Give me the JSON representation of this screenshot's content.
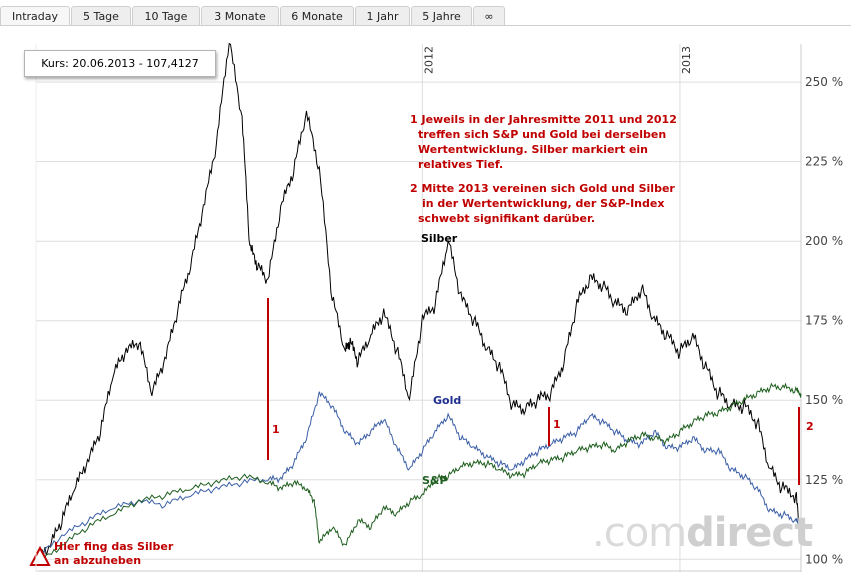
{
  "tabs": [
    {
      "label": "Intraday",
      "w": 70,
      "active": true
    },
    {
      "label": "5 Tage",
      "w": 60
    },
    {
      "label": "10 Tage",
      "w": 68
    },
    {
      "label": "3 Monate",
      "w": 78
    },
    {
      "label": "6 Monate",
      "w": 74
    },
    {
      "label": "1 Jahr",
      "w": 55
    },
    {
      "label": "5 Jahre",
      "w": 61
    },
    {
      "label": "∞",
      "w": 32
    }
  ],
  "tooltip": "Kurs: 20.06.2013 - 107,4127",
  "annotations": {
    "note1": [
      "1 Jeweils in der Jahresmitte 2011 und 2012",
      "treffen sich S&P und Gold bei derselben",
      "Wertentwicklung. Silber markiert ein",
      "relatives Tief."
    ],
    "note2": [
      "2 Mitte 2013 vereinen sich Gold und Silber",
      "in der Wertentwicklung, der S&P-Index",
      "schwebt signifikant darüber."
    ],
    "start_note": [
      "Hier fing das Silber",
      "an abzuheben"
    ],
    "marker1a": "1",
    "marker1b": "1",
    "marker2": "2"
  },
  "series_labels": {
    "silber": "Silber",
    "gold": "Gold",
    "sp": "S&P"
  },
  "watermark": {
    "dot": ".com",
    "rest": "direct"
  },
  "colors": {
    "silber": "#000000",
    "gold": "#3b5fa6",
    "sp": "#1e5e1e",
    "annotation": "#c00000",
    "grid": "#dddddd"
  },
  "chart_data": {
    "type": "line",
    "x_axis_labels": [
      "2012",
      "2013"
    ],
    "y_ticks": [
      "100 %",
      "125 %",
      "150 %",
      "175 %",
      "200 %",
      "225 %",
      "250 %"
    ],
    "ylim": [
      96,
      262
    ],
    "xlim": [
      2010.5,
      2013.47
    ],
    "series": [
      {
        "name": "Silber",
        "x": [
          2010.5,
          2010.55,
          2010.6,
          2010.65,
          2010.7,
          2010.75,
          2010.8,
          2010.85,
          2010.9,
          2010.95,
          2011.0,
          2011.05,
          2011.1,
          2011.15,
          2011.2,
          2011.25,
          2011.3,
          2011.33,
          2011.36,
          2011.4,
          2011.45,
          2011.5,
          2011.55,
          2011.6,
          2011.65,
          2011.7,
          2011.72,
          2011.75,
          2011.8,
          2011.85,
          2011.9,
          2011.95,
          2012.0,
          2012.05,
          2012.1,
          2012.15,
          2012.2,
          2012.25,
          2012.3,
          2012.35,
          2012.4,
          2012.45,
          2012.5,
          2012.55,
          2012.6,
          2012.65,
          2012.7,
          2012.75,
          2012.8,
          2012.85,
          2012.9,
          2012.95,
          2013.0,
          2013.05,
          2013.1,
          2013.15,
          2013.2,
          2013.25,
          2013.3,
          2013.35,
          2013.4,
          2013.45,
          2013.47
        ],
        "values": [
          100,
          103,
          112,
          122,
          130,
          140,
          158,
          165,
          168,
          152,
          162,
          178,
          192,
          210,
          230,
          263,
          238,
          198,
          192,
          187,
          210,
          222,
          240,
          222,
          182,
          165,
          168,
          162,
          170,
          177,
          166,
          150,
          175,
          180,
          200,
          182,
          175,
          166,
          160,
          148,
          147,
          150,
          152,
          162,
          180,
          188,
          186,
          180,
          178,
          185,
          175,
          170,
          165,
          170,
          160,
          152,
          148,
          148,
          143,
          128,
          122,
          120,
          106
        ]
      },
      {
        "name": "Gold",
        "x": [
          2010.5,
          2010.6,
          2010.7,
          2010.8,
          2010.9,
          2011.0,
          2011.1,
          2011.2,
          2011.3,
          2011.4,
          2011.45,
          2011.5,
          2011.55,
          2011.6,
          2011.65,
          2011.7,
          2011.75,
          2011.8,
          2011.85,
          2011.9,
          2011.95,
          2012.0,
          2012.05,
          2012.1,
          2012.15,
          2012.2,
          2012.25,
          2012.3,
          2012.35,
          2012.4,
          2012.45,
          2012.5,
          2012.55,
          2012.6,
          2012.65,
          2012.7,
          2012.75,
          2012.8,
          2012.85,
          2012.9,
          2012.95,
          2013.0,
          2013.05,
          2013.1,
          2013.15,
          2013.2,
          2013.25,
          2013.3,
          2013.35,
          2013.4,
          2013.45,
          2013.47
        ],
        "values": [
          100,
          107,
          112,
          116,
          118,
          117,
          120,
          122,
          124,
          125,
          125,
          130,
          138,
          152,
          148,
          140,
          136,
          140,
          144,
          135,
          128,
          134,
          140,
          145,
          138,
          135,
          132,
          130,
          128,
          131,
          134,
          136,
          138,
          140,
          145,
          143,
          140,
          137,
          136,
          140,
          135,
          135,
          138,
          134,
          134,
          128,
          126,
          122,
          115,
          114,
          112,
          110
        ]
      },
      {
        "name": "S&P",
        "x": [
          2010.5,
          2010.6,
          2010.7,
          2010.8,
          2010.9,
          2011.0,
          2011.1,
          2011.2,
          2011.3,
          2011.4,
          2011.45,
          2011.5,
          2011.55,
          2011.58,
          2011.6,
          2011.65,
          2011.7,
          2011.75,
          2011.8,
          2011.85,
          2011.9,
          2011.95,
          2012.0,
          2012.05,
          2012.1,
          2012.15,
          2012.2,
          2012.25,
          2012.3,
          2012.35,
          2012.4,
          2012.45,
          2012.5,
          2012.55,
          2012.6,
          2012.65,
          2012.7,
          2012.75,
          2012.8,
          2012.85,
          2012.9,
          2012.95,
          2013.0,
          2013.05,
          2013.1,
          2013.15,
          2013.2,
          2013.25,
          2013.3,
          2013.35,
          2013.4,
          2013.45,
          2013.47
        ],
        "values": [
          98,
          104,
          110,
          114,
          118,
          120,
          122,
          124,
          126,
          124,
          122,
          124,
          122,
          118,
          105,
          110,
          104,
          112,
          110,
          116,
          114,
          118,
          120,
          125,
          126,
          129,
          130,
          130,
          128,
          126,
          127,
          130,
          131,
          132,
          134,
          135,
          136,
          134,
          137,
          139,
          138,
          137,
          140,
          143,
          145,
          146,
          148,
          150,
          152,
          154,
          154,
          153,
          152
        ]
      }
    ]
  }
}
